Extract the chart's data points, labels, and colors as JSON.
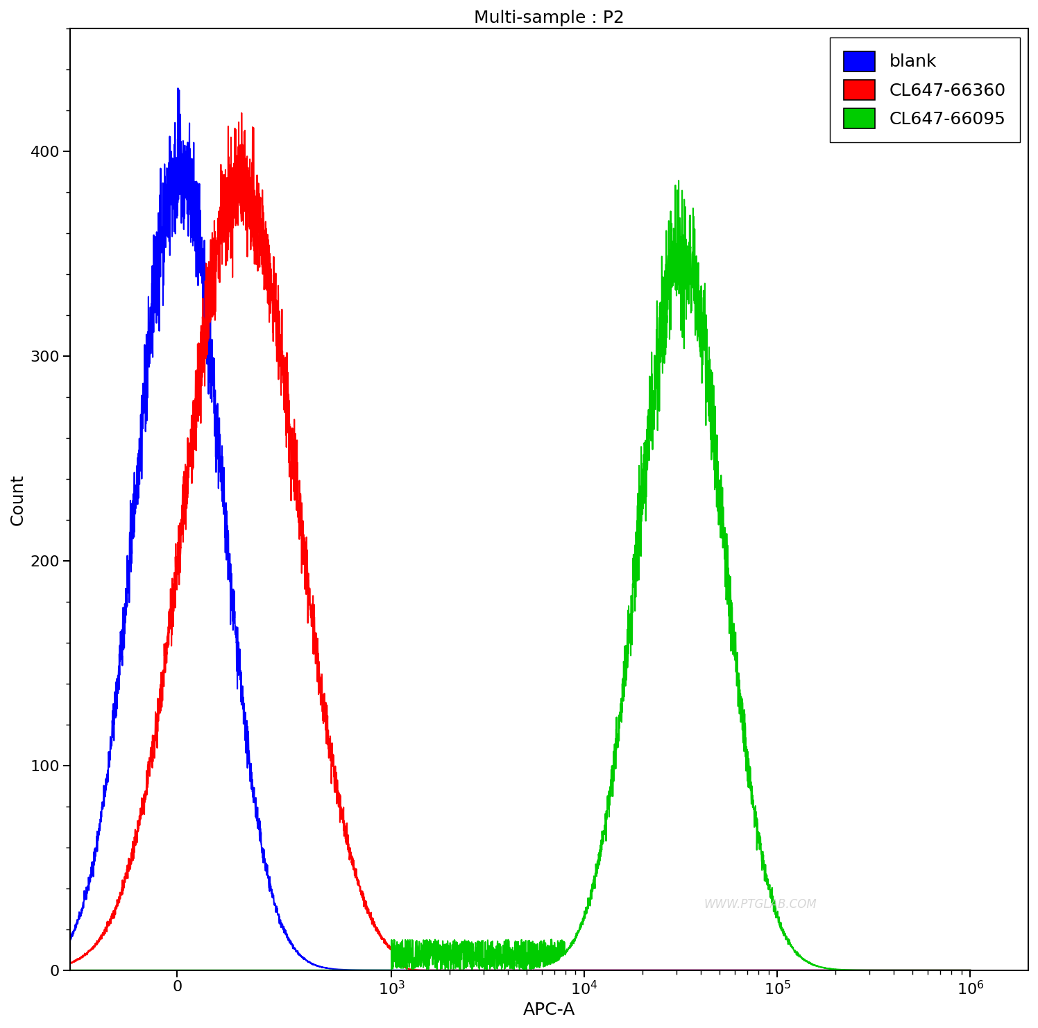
{
  "title": "Multi-sample : P2",
  "xlabel": "APC-A",
  "ylabel": "Count",
  "ylim": [
    0,
    460
  ],
  "yticks": [
    0,
    100,
    200,
    300,
    400
  ],
  "colors": {
    "blank": "#0000FF",
    "isotype": "#FF0000",
    "target": "#00CC00"
  },
  "legend": [
    {
      "label": "blank",
      "color": "#0000FF"
    },
    {
      "label": "CL647-66360",
      "color": "#FF0000"
    },
    {
      "label": "CL647-66095",
      "color": "#00CC00"
    }
  ],
  "watermark": "WWW.PTGLAB.COM",
  "background_color": "#FFFFFF",
  "linthresh": 1000,
  "linscale": 1.0,
  "xlim_left": -500,
  "xlim_right": 2000000,
  "blue_mean": 10,
  "blue_std": 200,
  "blue_peak": 390,
  "red_mean": 250,
  "red_std": 250,
  "red_peak": 385,
  "green_log_mean": 4.5,
  "green_log_std": 0.22,
  "green_peak": 350
}
